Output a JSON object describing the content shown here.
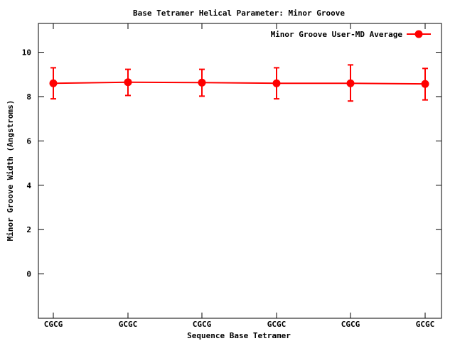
{
  "chart_data": {
    "type": "line",
    "title": "Base Tetramer Helical Parameter: Minor Groove",
    "xlabel": "Sequence Base Tetramer",
    "ylabel": "Minor Groove Width (Angstroms)",
    "categories": [
      "CGCG",
      "GCGC",
      "CGCG",
      "GCGC",
      "CGCG",
      "GCGC"
    ],
    "ylim": [
      -2,
      11.3
    ],
    "yticks": [
      0,
      2,
      4,
      6,
      8,
      10
    ],
    "grid": false,
    "legend_position": "top-right",
    "series": [
      {
        "name": "Minor Groove User-MD Average",
        "color": "#ff0000",
        "values": [
          8.6,
          8.65,
          8.63,
          8.6,
          8.6,
          8.57
        ],
        "error_low": [
          7.9,
          8.05,
          8.02,
          7.9,
          7.8,
          7.85
        ],
        "error_high": [
          9.3,
          9.23,
          9.23,
          9.3,
          9.43,
          9.27
        ]
      }
    ]
  }
}
